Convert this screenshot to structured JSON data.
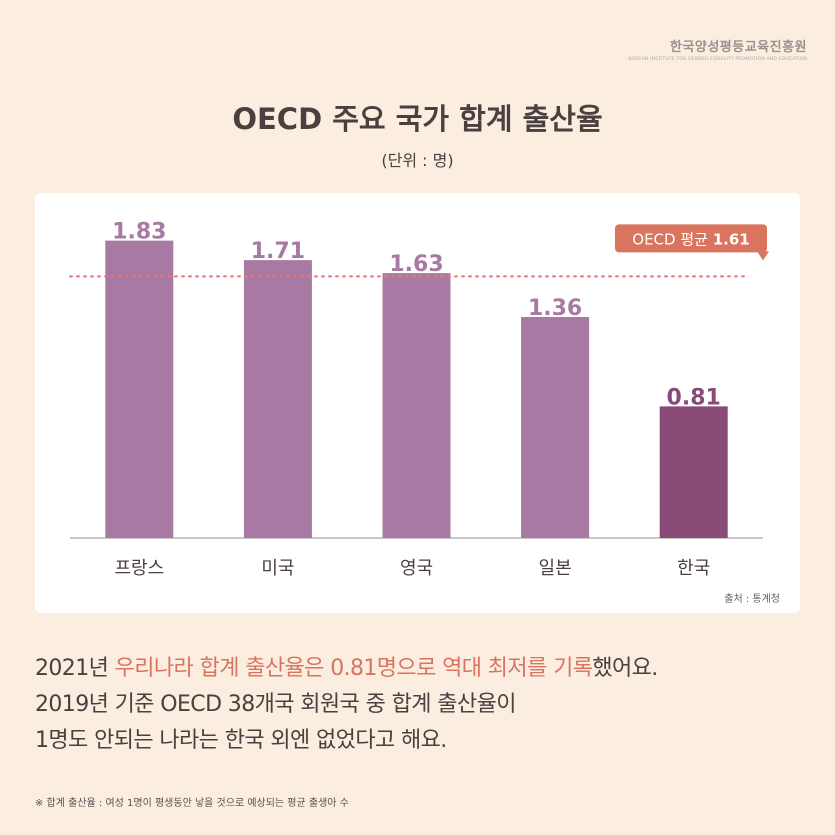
{
  "org": {
    "name": "한국양성평등교육진흥원",
    "subtitle": "KOREAN INSTITUTE FOR GENDER EQUALITY PROMOTION AND EDUCATION"
  },
  "title": "OECD 주요 국가 합계 출산율",
  "unit": "(단위 : 명)",
  "source": "출처 : 통계청",
  "colors": {
    "background": "#fbeee0",
    "bar": "#a87aa3",
    "bar_highlight": "#8a4a78",
    "average_line": "#e07a78",
    "average_label_bg": "#d9745f",
    "accent_text": "#d9745f"
  },
  "chart_data": {
    "type": "bar",
    "title": "OECD 주요 국가 합계 출산율",
    "unit": "명",
    "categories": [
      "프랑스",
      "미국",
      "영국",
      "일본",
      "한국"
    ],
    "values": [
      1.83,
      1.71,
      1.63,
      1.36,
      0.81
    ],
    "value_labels": [
      "1.83",
      "1.71",
      "1.63",
      "1.36",
      "0.81"
    ],
    "highlight_index": 4,
    "ylim": [
      0,
      2.0
    ],
    "average": {
      "value": 1.61,
      "label": "OECD 평균",
      "value_label": "1.61"
    }
  },
  "text": {
    "line1_prefix": "2021년 ",
    "line1_highlight1": "우리나라 합계 출산율은 0.81명으로 역대 최저를 기록",
    "line1_suffix": "했어요.",
    "line2": "2019년 기준 OECD 38개국 회원국 중 합계 출산율이",
    "line3": "1명도 안되는 나라는 한국 외엔 없었다고 해요."
  },
  "footnote": "※ 합계 출산율 : 여성 1명이 평생동안 낳을 것으로 예상되는 평균 출생아 수"
}
